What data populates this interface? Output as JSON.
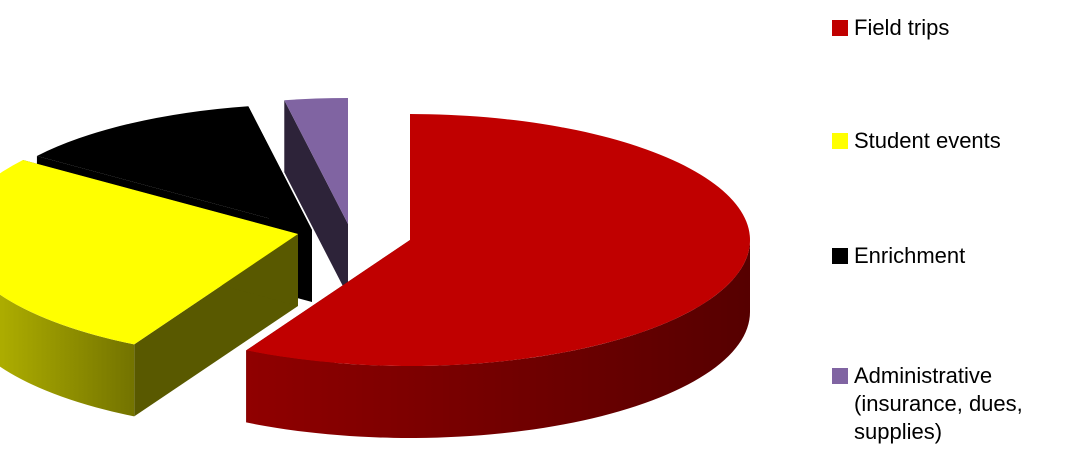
{
  "chart_data": {
    "type": "pie",
    "style": "3d-exploded",
    "categories": [
      "Field trips",
      "Student events",
      "Enrichment",
      "Administrative\n(insurance, dues,\nsupplies)"
    ],
    "values": [
      58,
      27,
      12,
      3
    ],
    "colors": {
      "Field trips": "#c00000",
      "Student events": "#ffff00",
      "Enrichment": "#000000",
      "Administrative": "#8064a2"
    },
    "legend_position": "right",
    "title": ""
  }
}
